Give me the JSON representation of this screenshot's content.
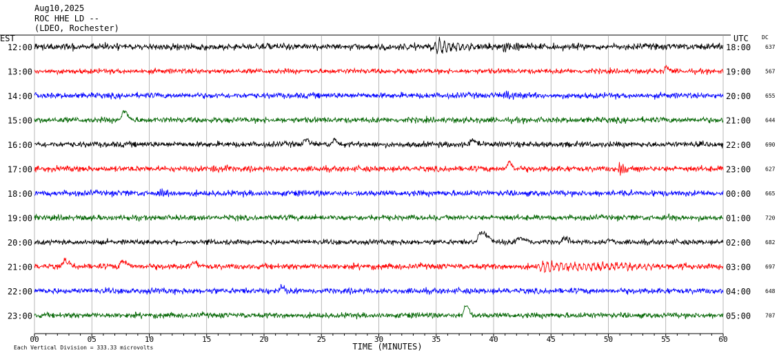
{
  "header": {
    "date": "Aug10,2025",
    "station": "ROC HHE LD --",
    "network": "(LDEO, Rochester)"
  },
  "left_tz": "EST",
  "right_tz": "UTC",
  "dc_label": "DC",
  "footer_note": "Each Vertical Division =  333.33 microvolts",
  "colors": {
    "cycle": [
      "#000000",
      "#ff0000",
      "#0000ff",
      "#006400"
    ],
    "grid": "#999999"
  },
  "chart_data": {
    "type": "line",
    "description_type": "helicorder",
    "xlabel": "TIME (MINUTES)",
    "xlim": [
      0,
      60
    ],
    "x_ticks": [
      "00",
      "05",
      "10",
      "15",
      "20",
      "25",
      "30",
      "35",
      "40",
      "45",
      "50",
      "55",
      "60"
    ],
    "rows": [
      {
        "est": "12:00",
        "utc": "18:00",
        "dc": "637",
        "color": "#000000",
        "noise": 0.5,
        "events": [
          {
            "t": 35,
            "dur": 3.5,
            "amp": 2.2,
            "freq": 2.5
          },
          {
            "t": 41,
            "dur": 2.5,
            "amp": 1.4,
            "freq": 6
          }
        ]
      },
      {
        "est": "13:00",
        "utc": "19:00",
        "dc": "567",
        "color": "#ff0000",
        "noise": 0.4,
        "events": [
          {
            "t": 55,
            "dur": 0.8,
            "amp": 0.8,
            "freq": 1
          }
        ]
      },
      {
        "est": "14:00",
        "utc": "20:00",
        "dc": "655",
        "color": "#0000ff",
        "noise": 0.45,
        "events": [
          {
            "t": 41,
            "dur": 2,
            "amp": 0.9,
            "freq": 6
          }
        ]
      },
      {
        "est": "15:00",
        "utc": "21:00",
        "dc": "644",
        "color": "#006400",
        "noise": 0.45,
        "events": [
          {
            "t": 7.7,
            "dur": 1.2,
            "amp": 1.6,
            "freq": 0.5
          }
        ]
      },
      {
        "est": "16:00",
        "utc": "22:00",
        "dc": "690",
        "color": "#000000",
        "noise": 0.45,
        "events": [
          {
            "t": 23.5,
            "dur": 1,
            "amp": 0.9,
            "freq": 1
          },
          {
            "t": 26,
            "dur": 1,
            "amp": 0.8,
            "freq": 1
          },
          {
            "t": 38,
            "dur": 1.5,
            "amp": 0.8,
            "freq": 1
          }
        ]
      },
      {
        "est": "17:00",
        "utc": "23:00",
        "dc": "627",
        "color": "#ff0000",
        "noise": 0.45,
        "events": [
          {
            "t": 15.5,
            "dur": 1.5,
            "amp": 0.9,
            "freq": 6
          },
          {
            "t": 41.3,
            "dur": 0.8,
            "amp": 1.2,
            "freq": 1
          },
          {
            "t": 51,
            "dur": 2,
            "amp": 1.1,
            "freq": 6
          }
        ]
      },
      {
        "est": "18:00",
        "utc": "00:00",
        "dc": "665",
        "color": "#0000ff",
        "noise": 0.45,
        "events": [
          {
            "t": 11,
            "dur": 2,
            "amp": 1.0,
            "freq": 6
          }
        ]
      },
      {
        "est": "19:00",
        "utc": "01:00",
        "dc": "720",
        "color": "#006400",
        "noise": 0.42,
        "events": [
          {
            "t": 55.5,
            "dur": 1,
            "amp": 0.9,
            "freq": 6
          }
        ]
      },
      {
        "est": "20:00",
        "utc": "02:00",
        "dc": "682",
        "color": "#000000",
        "noise": 0.4,
        "events": [
          {
            "t": 38.7,
            "dur": 2,
            "amp": 2.0,
            "freq": 0.6
          },
          {
            "t": 42,
            "dur": 2,
            "amp": 0.7,
            "freq": 0.8
          },
          {
            "t": 46,
            "dur": 1.5,
            "amp": 0.7,
            "freq": 0.8
          },
          {
            "t": 50,
            "dur": 1,
            "amp": 0.5,
            "freq": 1
          }
        ]
      },
      {
        "est": "21:00",
        "utc": "03:00",
        "dc": "697",
        "color": "#ff0000",
        "noise": 0.45,
        "events": [
          {
            "t": 2.5,
            "dur": 1.5,
            "amp": 1.2,
            "freq": 0.4
          },
          {
            "t": 7.5,
            "dur": 1.5,
            "amp": 1.0,
            "freq": 0.4
          },
          {
            "t": 13.8,
            "dur": 1,
            "amp": 0.9,
            "freq": 0.5
          },
          {
            "t": 44,
            "dur": 14,
            "amp": 1.3,
            "freq": 2.5
          }
        ]
      },
      {
        "est": "22:00",
        "utc": "04:00",
        "dc": "648",
        "color": "#0000ff",
        "noise": 0.45,
        "events": [
          {
            "t": 21.5,
            "dur": 0.8,
            "amp": 0.7,
            "freq": 1
          }
        ]
      },
      {
        "est": "23:00",
        "utc": "05:00",
        "dc": "707",
        "color": "#006400",
        "noise": 0.42,
        "events": [
          {
            "t": 37.5,
            "dur": 1,
            "amp": 1.8,
            "freq": 1
          }
        ]
      }
    ]
  }
}
